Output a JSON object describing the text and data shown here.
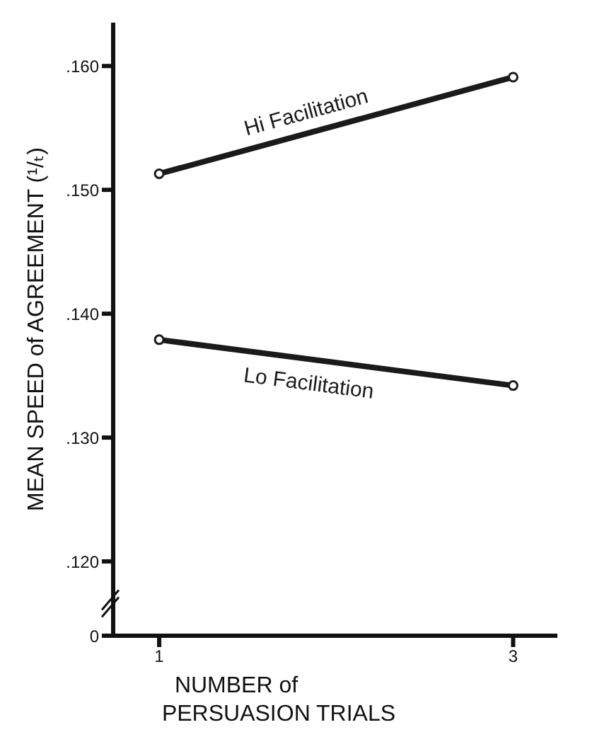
{
  "chart_data": {
    "type": "line",
    "xlabel": "NUMBER of PERSUASION TRIALS",
    "ylabel": "MEAN SPEED of AGREEMENT (¹/ₜ)",
    "x": [
      1,
      3
    ],
    "series": [
      {
        "name": "Hi Facilitation",
        "color": "#1a1a1a",
        "values": [
          0.1513,
          0.1591
        ]
      },
      {
        "name": "Lo Facilitation",
        "color": "#1a1a1a",
        "values": [
          0.1379,
          0.1342
        ]
      }
    ],
    "xlim": [
      0.74,
      3.25
    ],
    "xticks": [
      1,
      3
    ],
    "ylim": [
      0.114,
      0.1635
    ],
    "yticks": [
      {
        "value": 0.114,
        "label": "0"
      },
      {
        "value": 0.12,
        "label": ".120"
      },
      {
        "value": 0.13,
        "label": ".130"
      },
      {
        "value": 0.14,
        "label": ".140"
      },
      {
        "value": 0.15,
        "label": ".150"
      },
      {
        "value": 0.16,
        "label": ".160"
      }
    ],
    "grid": false,
    "legend": false,
    "marker": "circle",
    "line_style": "solid"
  }
}
